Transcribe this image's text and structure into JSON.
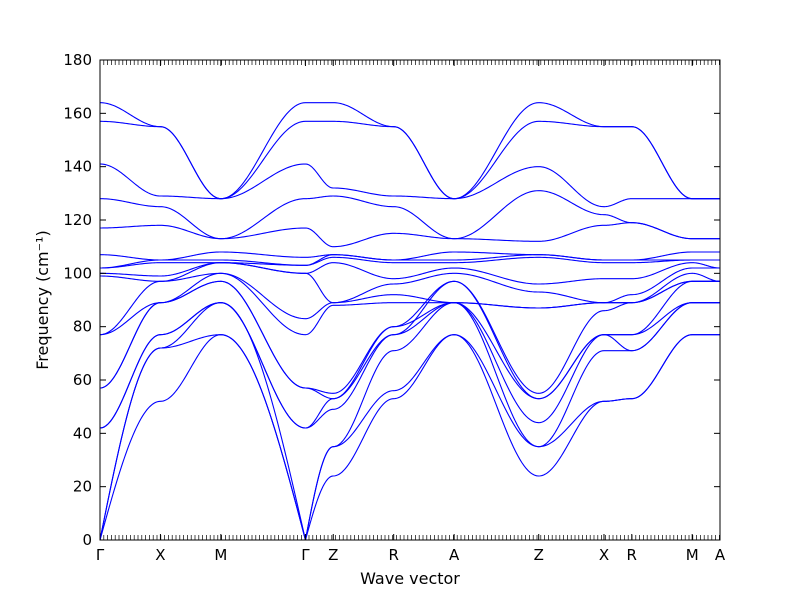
{
  "chart_data": {
    "type": "line",
    "title": "",
    "xlabel": "Wave vector",
    "ylabel": "Frequency (cm⁻¹)",
    "ylim": [
      0,
      180
    ],
    "yticks": [
      0,
      20,
      40,
      60,
      80,
      100,
      120,
      140,
      160,
      180
    ],
    "grid": false,
    "line_color": "#0000ff",
    "k_points": [
      {
        "label": "Γ",
        "x": 0.0
      },
      {
        "label": "X",
        "x": 0.5
      },
      {
        "label": "M",
        "x": 1.0
      },
      {
        "label": "Γ",
        "x": 1.7
      },
      {
        "label": "Z",
        "x": 1.93
      },
      {
        "label": "R",
        "x": 2.43
      },
      {
        "label": "A",
        "x": 2.93
      },
      {
        "label": "Z",
        "x": 3.63
      },
      {
        "label": "X",
        "x": 4.17
      },
      {
        "label": "R",
        "x": 4.4
      },
      {
        "label": "M",
        "x": 4.9
      },
      {
        "label": "A",
        "x": 5.13
      }
    ],
    "series": [
      {
        "x": [
          0.0,
          0.5,
          1.0,
          1.7,
          1.93,
          2.43,
          2.93,
          3.63,
          4.17,
          4.4,
          4.9,
          5.13
        ],
        "y": [
          0,
          52,
          77,
          0,
          24,
          53,
          77,
          24,
          52,
          53,
          77,
          77
        ]
      },
      {
        "x": [
          0.0,
          0.5,
          1.0,
          1.7,
          1.93,
          2.43,
          2.93,
          3.63,
          4.17,
          4.4,
          4.9,
          5.13
        ],
        "y": [
          0,
          72,
          77,
          0,
          35,
          56,
          77,
          35,
          52,
          53,
          77,
          77
        ]
      },
      {
        "x": [
          0.0,
          0.5,
          1.0,
          1.7,
          1.93,
          2.43,
          2.93,
          3.63,
          4.17,
          4.4,
          4.9,
          5.13
        ],
        "y": [
          0,
          72,
          89,
          0,
          35,
          71,
          89,
          35,
          71,
          71,
          89,
          89
        ]
      },
      {
        "x": [
          0.0,
          0.5,
          1.0,
          1.7,
          1.93,
          2.43,
          2.93,
          3.63,
          4.17,
          4.4,
          4.9,
          5.13
        ],
        "y": [
          42,
          77,
          89,
          42,
          49,
          77,
          89,
          44,
          77,
          71,
          89,
          89
        ]
      },
      {
        "x": [
          0.0,
          0.5,
          1.0,
          1.7,
          1.93,
          2.43,
          2.93,
          3.63,
          4.17,
          4.4,
          4.9,
          5.13
        ],
        "y": [
          42,
          77,
          89,
          42,
          53,
          80,
          89,
          53,
          77,
          77,
          89,
          89
        ]
      },
      {
        "x": [
          0.0,
          0.5,
          1.0,
          1.7,
          1.93,
          2.43,
          2.93,
          3.63,
          4.17,
          4.4,
          4.9,
          5.13
        ],
        "y": [
          57,
          89,
          97,
          57,
          53,
          77,
          97,
          53,
          77,
          77,
          97,
          97
        ]
      },
      {
        "x": [
          0.0,
          0.5,
          1.0,
          1.7,
          1.93,
          2.43,
          2.93,
          3.63,
          4.17,
          4.4,
          4.9,
          5.13
        ],
        "y": [
          57,
          89,
          97,
          57,
          55,
          80,
          97,
          55,
          86,
          89,
          97,
          97
        ]
      },
      {
        "x": [
          0.0,
          0.5,
          1.0,
          1.7,
          1.93,
          2.43,
          2.93,
          3.63,
          4.17,
          4.4,
          4.9,
          5.13
        ],
        "y": [
          77,
          89,
          100,
          77,
          88,
          89,
          89,
          87,
          89,
          89,
          97,
          97
        ]
      },
      {
        "x": [
          0.0,
          0.5,
          1.0,
          1.7,
          1.93,
          2.43,
          2.93,
          3.63,
          4.17,
          4.4,
          4.9,
          5.13
        ],
        "y": [
          77,
          97,
          100,
          83,
          89,
          92,
          89,
          87,
          89,
          89,
          100,
          97
        ]
      },
      {
        "x": [
          0.0,
          0.5,
          1.0,
          1.7,
          1.93,
          2.43,
          2.93,
          3.63,
          4.17,
          4.4,
          4.9,
          5.13
        ],
        "y": [
          99,
          97,
          104,
          100,
          89,
          96,
          100,
          93,
          89,
          92,
          102,
          102
        ]
      },
      {
        "x": [
          0.0,
          0.5,
          1.0,
          1.7,
          1.93,
          2.43,
          2.93,
          3.63,
          4.17,
          4.4,
          4.9,
          5.13
        ],
        "y": [
          100,
          99,
          104,
          100,
          104,
          98,
          102,
          96,
          98,
          98,
          104,
          102
        ]
      },
      {
        "x": [
          0.0,
          0.5,
          1.0,
          1.7,
          1.93,
          2.43,
          2.93,
          3.63,
          4.17,
          4.4,
          4.9,
          5.13
        ],
        "y": [
          102,
          104,
          104,
          103,
          106,
          104,
          104,
          106,
          104,
          104,
          105,
          105
        ]
      },
      {
        "x": [
          0.0,
          0.5,
          1.0,
          1.7,
          1.93,
          2.43,
          2.93,
          3.63,
          4.17,
          4.4,
          4.9,
          5.13
        ],
        "y": [
          102,
          105,
          105,
          103,
          107,
          105,
          105,
          107,
          105,
          105,
          105,
          105
        ]
      },
      {
        "x": [
          0.0,
          0.5,
          1.0,
          1.7,
          1.93,
          2.43,
          2.93,
          3.63,
          4.17,
          4.4,
          4.9,
          5.13
        ],
        "y": [
          107,
          105,
          108,
          106,
          107,
          105,
          108,
          107,
          105,
          105,
          108,
          108
        ]
      },
      {
        "x": [
          0.0,
          0.5,
          1.0,
          1.7,
          1.93,
          2.43,
          2.93,
          3.63,
          4.17,
          4.4,
          4.9,
          5.13
        ],
        "y": [
          117,
          118,
          113,
          117,
          110,
          115,
          113,
          112,
          118,
          119,
          113,
          113
        ]
      },
      {
        "x": [
          0.0,
          0.5,
          1.0,
          1.7,
          1.93,
          2.43,
          2.93,
          3.63,
          4.17,
          4.4,
          4.9,
          5.13
        ],
        "y": [
          128,
          125,
          113,
          128,
          129,
          125,
          113,
          131,
          122,
          119,
          113,
          113
        ]
      },
      {
        "x": [
          0.0,
          0.5,
          1.0,
          1.7,
          1.93,
          2.43,
          2.93,
          3.63,
          4.17,
          4.4,
          4.9,
          5.13
        ],
        "y": [
          141,
          129,
          128,
          141,
          132,
          129,
          128,
          140,
          125,
          128,
          128,
          128
        ]
      },
      {
        "x": [
          0.0,
          0.5,
          1.0,
          1.7,
          1.93,
          2.43,
          2.93,
          3.63,
          4.17,
          4.4,
          4.9,
          5.13
        ],
        "y": [
          157,
          155,
          128,
          157,
          157,
          155,
          128,
          157,
          155,
          155,
          128,
          128
        ]
      },
      {
        "x": [
          0.0,
          0.5,
          1.0,
          1.7,
          1.93,
          2.43,
          2.93,
          3.63,
          4.17,
          4.4,
          4.9,
          5.13
        ],
        "y": [
          164,
          155,
          128,
          164,
          164,
          155,
          128,
          164,
          155,
          155,
          128,
          128
        ]
      }
    ]
  }
}
